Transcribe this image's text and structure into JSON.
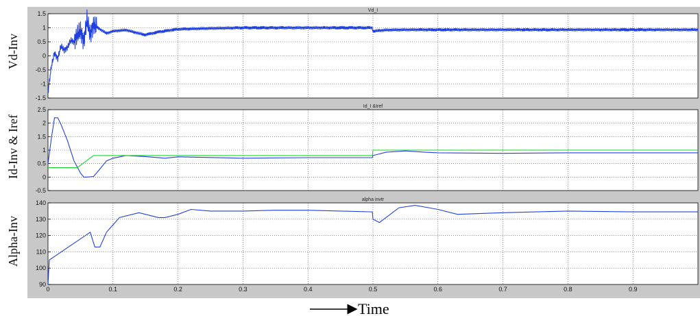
{
  "chart_data": [
    {
      "type": "line",
      "title": "Vd_I",
      "ylabel": "Vd-Inv",
      "xlim": [
        0,
        1.0
      ],
      "ylim": [
        -1.5,
        1.5
      ],
      "yticks": [
        "-1.5",
        "-1",
        "-0.5",
        "0",
        "0.5",
        "1",
        "1.5"
      ],
      "grid": true,
      "series": [
        {
          "color": "#1f3fe0",
          "x": [
            0,
            0.005,
            0.01,
            0.015,
            0.02,
            0.025,
            0.03,
            0.035,
            0.04,
            0.045,
            0.05,
            0.055,
            0.06,
            0.065,
            0.07,
            0.08,
            0.09,
            0.1,
            0.12,
            0.14,
            0.15,
            0.17,
            0.2,
            0.25,
            0.3,
            0.35,
            0.4,
            0.45,
            0.499,
            0.5,
            0.52,
            0.55,
            0.6,
            0.7,
            0.8,
            0.9,
            1.0
          ],
          "y": [
            -1.3,
            -0.4,
            0.1,
            -0.1,
            0.35,
            0.2,
            0.3,
            0.55,
            0.5,
            0.75,
            0.9,
            0.5,
            1.3,
            0.75,
            1.1,
            0.95,
            0.8,
            0.88,
            0.92,
            0.8,
            0.75,
            0.85,
            0.95,
            0.98,
            1.0,
            1.0,
            1.0,
            1.0,
            1.0,
            0.88,
            0.92,
            0.93,
            0.93,
            0.93,
            0.93,
            0.93,
            0.93
          ],
          "ripple": 0.06
        }
      ]
    },
    {
      "type": "line",
      "title": "Id_I &Iref",
      "ylabel": "Id-Inv & Iref",
      "xlim": [
        0,
        1.0
      ],
      "ylim": [
        -0.5,
        2.5
      ],
      "yticks": [
        "-0.5",
        "0",
        "0.5",
        "1",
        "1.5",
        "2",
        "2.5"
      ],
      "grid": true,
      "series": [
        {
          "color": "#1f3fe0",
          "x": [
            0,
            0.005,
            0.01,
            0.015,
            0.02,
            0.03,
            0.04,
            0.05,
            0.055,
            0.06,
            0.07,
            0.08,
            0.09,
            0.1,
            0.12,
            0.15,
            0.18,
            0.2,
            0.3,
            0.4,
            0.499,
            0.5,
            0.52,
            0.55,
            0.58,
            0.6,
            0.7,
            0.8,
            0.9,
            1.0
          ],
          "y": [
            0.5,
            1.4,
            2.2,
            2.2,
            1.95,
            1.35,
            0.6,
            0.15,
            0.0,
            0.0,
            0.02,
            0.3,
            0.6,
            0.7,
            0.8,
            0.76,
            0.7,
            0.75,
            0.7,
            0.72,
            0.72,
            0.8,
            0.92,
            0.97,
            0.92,
            0.9,
            0.88,
            0.9,
            0.9,
            0.9
          ]
        },
        {
          "color": "#19d42c",
          "x": [
            0,
            0.045,
            0.07,
            0.499,
            0.5,
            1.0
          ],
          "y": [
            0.35,
            0.35,
            0.8,
            0.8,
            1.0,
            1.0
          ]
        }
      ]
    },
    {
      "type": "line",
      "title": "alpha invtr",
      "ylabel": "Alpha-Inv",
      "xlim": [
        0,
        1.0
      ],
      "ylim": [
        90,
        140
      ],
      "yticks": [
        "90",
        "100",
        "110",
        "120",
        "130",
        "140"
      ],
      "xticks": [
        "0",
        "0.1",
        "0.2",
        "0.3",
        "0.4",
        "0.5",
        "0.6",
        "0.7",
        "0.8",
        "0.9"
      ],
      "grid": true,
      "series": [
        {
          "color": "#1f3fe0",
          "x": [
            0,
            0.002,
            0.065,
            0.072,
            0.08,
            0.09,
            0.11,
            0.14,
            0.17,
            0.18,
            0.2,
            0.22,
            0.25,
            0.3,
            0.35,
            0.4,
            0.45,
            0.499,
            0.5,
            0.51,
            0.54,
            0.565,
            0.6,
            0.63,
            0.7,
            0.8,
            0.9,
            1.0
          ],
          "y": [
            90,
            105,
            122,
            113,
            113,
            122,
            131,
            134,
            131,
            131,
            133,
            136,
            135,
            135,
            135.5,
            135.5,
            135,
            134.5,
            130,
            128,
            137,
            138.5,
            136,
            133,
            134,
            135,
            134.5,
            134.5
          ]
        }
      ]
    }
  ],
  "xaxis_label": "Time"
}
